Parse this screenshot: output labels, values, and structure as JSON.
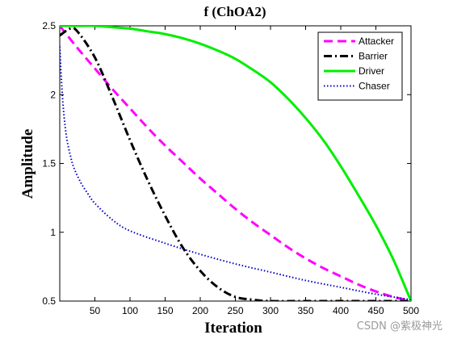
{
  "chart_data": {
    "type": "line",
    "title": "f (ChOA2)",
    "xlabel": "Iteration",
    "ylabel": "Amplitude",
    "xlim": [
      0,
      500
    ],
    "ylim": [
      0.5,
      2.5
    ],
    "xticks": [
      50,
      100,
      150,
      200,
      250,
      300,
      350,
      400,
      450,
      500
    ],
    "yticks": [
      0.5,
      1,
      1.5,
      2,
      2.5
    ],
    "xtick_labels": [
      "50",
      "100",
      "150",
      "200",
      "250",
      "300",
      "350",
      "400",
      "450",
      "500"
    ],
    "ytick_labels": [
      "0.5",
      "1",
      "1.5",
      "2",
      "2.5"
    ],
    "grid": false,
    "legend_position": "top-right",
    "series": [
      {
        "name": "Attacker",
        "color": "#ff00ff",
        "style": "dashed",
        "x": [
          0,
          25,
          50,
          75,
          100,
          125,
          150,
          175,
          200,
          225,
          250,
          275,
          300,
          325,
          350,
          375,
          400,
          425,
          450,
          475,
          500
        ],
        "y": [
          2.5,
          2.34,
          2.19,
          2.04,
          1.9,
          1.76,
          1.63,
          1.51,
          1.39,
          1.28,
          1.17,
          1.07,
          0.98,
          0.89,
          0.81,
          0.74,
          0.68,
          0.62,
          0.57,
          0.53,
          0.5
        ]
      },
      {
        "name": "Barrier",
        "color": "#000000",
        "style": "dashdot",
        "x": [
          0,
          15,
          25,
          50,
          75,
          100,
          125,
          150,
          175,
          200,
          225,
          250,
          275,
          300,
          350,
          400,
          450,
          500
        ],
        "y": [
          2.43,
          2.48,
          2.46,
          2.27,
          1.98,
          1.67,
          1.38,
          1.12,
          0.89,
          0.72,
          0.6,
          0.53,
          0.51,
          0.5,
          0.5,
          0.5,
          0.5,
          0.5
        ]
      },
      {
        "name": "Driver",
        "color": "#00ee00",
        "style": "solid",
        "x": [
          0,
          25,
          50,
          75,
          100,
          125,
          150,
          175,
          200,
          225,
          250,
          275,
          300,
          325,
          350,
          375,
          400,
          425,
          450,
          475,
          500
        ],
        "y": [
          2.5,
          2.5,
          2.5,
          2.49,
          2.48,
          2.46,
          2.44,
          2.41,
          2.37,
          2.32,
          2.26,
          2.18,
          2.09,
          1.97,
          1.83,
          1.67,
          1.48,
          1.27,
          1.05,
          0.8,
          0.5
        ]
      },
      {
        "name": "Chaser",
        "color": "#0000cc",
        "style": "dotted",
        "x": [
          0,
          3,
          6,
          10,
          15,
          20,
          30,
          40,
          50,
          75,
          100,
          150,
          200,
          250,
          300,
          350,
          400,
          450,
          500
        ],
        "y": [
          2.35,
          2.05,
          1.85,
          1.68,
          1.56,
          1.47,
          1.36,
          1.28,
          1.21,
          1.09,
          1.01,
          0.92,
          0.84,
          0.77,
          0.71,
          0.65,
          0.6,
          0.55,
          0.51
        ]
      }
    ]
  },
  "watermark": "CSDN @紫极神光"
}
